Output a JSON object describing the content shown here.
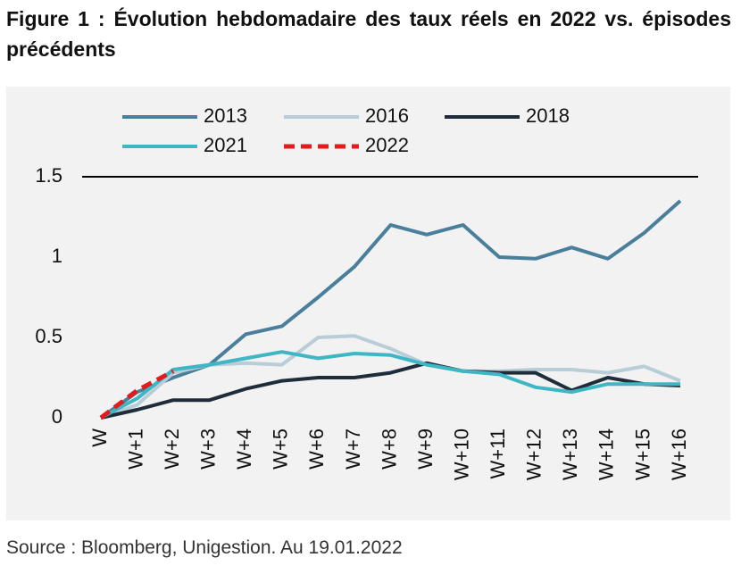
{
  "chart_data": {
    "type": "line",
    "title": "Figure 1 : Évolution hebdomadaire des taux réels en 2022 vs. épisodes précédents",
    "source": "Source : Bloomberg, Unigestion. Au 19.01.2022",
    "categories": [
      "W",
      "W+1",
      "W+2",
      "W+3",
      "W+4",
      "W+5",
      "W+6",
      "W+7",
      "W+8",
      "W+9",
      "W+10",
      "W+11",
      "W+12",
      "W+13",
      "W+14",
      "W+15",
      "W+16"
    ],
    "series": [
      {
        "name": "2013",
        "color": "#4a7f9c",
        "values": [
          0,
          0.16,
          0.25,
          0.33,
          0.52,
          0.57,
          0.75,
          0.94,
          1.2,
          1.14,
          1.2,
          1.0,
          0.99,
          1.06,
          0.99,
          1.15,
          1.35
        ]
      },
      {
        "name": "2016",
        "color": "#b8cdd8",
        "values": [
          0,
          0.08,
          0.28,
          0.33,
          0.34,
          0.33,
          0.5,
          0.51,
          0.43,
          0.33,
          0.29,
          0.29,
          0.3,
          0.3,
          0.28,
          0.32,
          0.23
        ]
      },
      {
        "name": "2018",
        "color": "#1f2d3a",
        "values": [
          0,
          0.05,
          0.11,
          0.11,
          0.18,
          0.23,
          0.25,
          0.25,
          0.28,
          0.34,
          0.29,
          0.28,
          0.28,
          0.17,
          0.25,
          0.21,
          0.2
        ]
      },
      {
        "name": "2021",
        "color": "#3fb6c4",
        "values": [
          0,
          0.12,
          0.3,
          0.33,
          0.37,
          0.41,
          0.37,
          0.4,
          0.39,
          0.33,
          0.29,
          0.27,
          0.19,
          0.16,
          0.21,
          0.21,
          0.21
        ]
      },
      {
        "name": "2022",
        "color": "#e31b1b",
        "dashed": true,
        "values": [
          0,
          0.17,
          0.29,
          null,
          null,
          null,
          null,
          null,
          null,
          null,
          null,
          null,
          null,
          null,
          null,
          null,
          null
        ]
      }
    ],
    "ylim": [
      0,
      1.5
    ],
    "yticks": [
      0,
      0.5,
      1,
      1.5
    ]
  }
}
